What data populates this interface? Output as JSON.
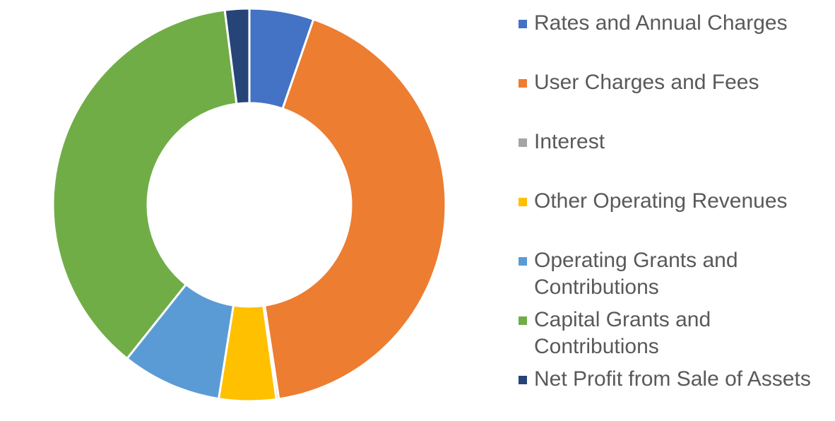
{
  "chart_data": {
    "type": "pie",
    "variant": "donut",
    "title": "",
    "legend_position": "right",
    "slices": [
      {
        "label": "Rates and Annual Charges",
        "value": 5.3,
        "color": "#4472C4"
      },
      {
        "label": "User Charges and Fees",
        "value": 42.3,
        "color": "#ED7D31"
      },
      {
        "label": "Interest",
        "value": 0.2,
        "color": "#A5A5A5"
      },
      {
        "label": "Other Operating Revenues",
        "value": 4.7,
        "color": "#FFC000"
      },
      {
        "label": "Operating Grants and Contributions",
        "value": 8.2,
        "color": "#5B9BD5"
      },
      {
        "label": "Capital Grants and Contributions",
        "value": 37.3,
        "color": "#70AD47"
      },
      {
        "label": "Net Profit from Sale of Assets",
        "value": 2.0,
        "color": "#264478"
      }
    ]
  }
}
